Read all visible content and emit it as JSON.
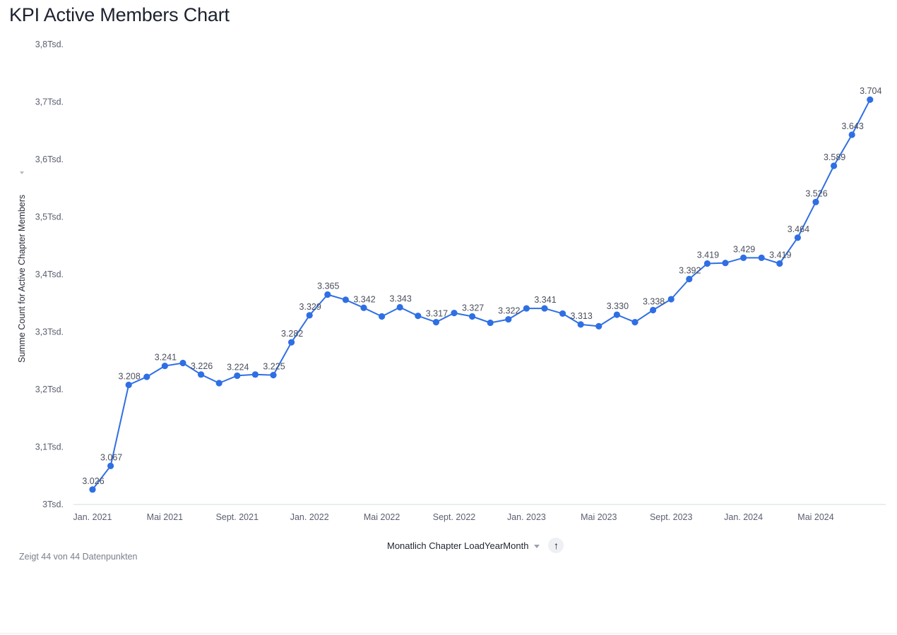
{
  "title": "KPI Active Members Chart",
  "footer_text": "Zeigt 44 von 44 Datenpunkten",
  "x_axis_control": {
    "label": "Monatlich Chapter LoadYearMonth",
    "sort_icon": "arrow-up-icon",
    "dropdown_icon": "chevron-down-icon"
  },
  "colors": {
    "series": "#2f6fe4",
    "axis": "#d5d8de"
  },
  "chart_data": {
    "type": "line",
    "title": "KPI Active Members Chart",
    "xlabel": "Monatlich Chapter LoadYearMonth",
    "ylabel": "Summe Count for Active Chapter Members",
    "ylim": [
      3000,
      3800
    ],
    "yticks": [
      {
        "value": 3000,
        "label": "3Tsd."
      },
      {
        "value": 3100,
        "label": "3,1Tsd."
      },
      {
        "value": 3200,
        "label": "3,2Tsd."
      },
      {
        "value": 3300,
        "label": "3,3Tsd."
      },
      {
        "value": 3400,
        "label": "3,4Tsd."
      },
      {
        "value": 3500,
        "label": "3,5Tsd."
      },
      {
        "value": 3600,
        "label": "3,6Tsd."
      },
      {
        "value": 3700,
        "label": "3,7Tsd."
      },
      {
        "value": 3800,
        "label": "3,8Tsd."
      }
    ],
    "xticks": [
      {
        "index": 0,
        "label": "Jan. 2021"
      },
      {
        "index": 4,
        "label": "Mai 2021"
      },
      {
        "index": 8,
        "label": "Sept. 2021"
      },
      {
        "index": 12,
        "label": "Jan. 2022"
      },
      {
        "index": 16,
        "label": "Mai 2022"
      },
      {
        "index": 20,
        "label": "Sept. 2022"
      },
      {
        "index": 24,
        "label": "Jan. 2023"
      },
      {
        "index": 28,
        "label": "Mai 2023"
      },
      {
        "index": 32,
        "label": "Sept. 2023"
      },
      {
        "index": 36,
        "label": "Jan. 2024"
      },
      {
        "index": 40,
        "label": "Mai 2024"
      }
    ],
    "grid": false,
    "series": [
      {
        "values": [
          3026,
          3067,
          3208,
          3222,
          3241,
          3246,
          3226,
          3211,
          3224,
          3226,
          3225,
          3282,
          3329,
          3365,
          3356,
          3342,
          3327,
          3343,
          3328,
          3317,
          3333,
          3327,
          3316,
          3322,
          3341,
          3341,
          3332,
          3313,
          3310,
          3330,
          3317,
          3338,
          3357,
          3392,
          3419,
          3420,
          3429,
          3429,
          3419,
          3464,
          3526,
          3589,
          3643,
          3704
        ]
      }
    ],
    "data_labels": [
      {
        "index": 0,
        "text": "3.026"
      },
      {
        "index": 1,
        "text": "3.067"
      },
      {
        "index": 2,
        "text": "3.208"
      },
      {
        "index": 4,
        "text": "3.241"
      },
      {
        "index": 6,
        "text": "3.226"
      },
      {
        "index": 8,
        "text": "3.224"
      },
      {
        "index": 10,
        "text": "3.225"
      },
      {
        "index": 11,
        "text": "3.282"
      },
      {
        "index": 12,
        "text": "3.329"
      },
      {
        "index": 13,
        "text": "3.365"
      },
      {
        "index": 15,
        "text": "3.342"
      },
      {
        "index": 17,
        "text": "3.343"
      },
      {
        "index": 19,
        "text": "3.317"
      },
      {
        "index": 21,
        "text": "3.327"
      },
      {
        "index": 23,
        "text": "3.322"
      },
      {
        "index": 25,
        "text": "3.341"
      },
      {
        "index": 27,
        "text": "3.313"
      },
      {
        "index": 29,
        "text": "3.330"
      },
      {
        "index": 31,
        "text": "3.338"
      },
      {
        "index": 33,
        "text": "3.392"
      },
      {
        "index": 34,
        "text": "3.419"
      },
      {
        "index": 36,
        "text": "3.429"
      },
      {
        "index": 38,
        "text": "3.419"
      },
      {
        "index": 39,
        "text": "3.464"
      },
      {
        "index": 40,
        "text": "3.526"
      },
      {
        "index": 41,
        "text": "3.589"
      },
      {
        "index": 42,
        "text": "3.643"
      },
      {
        "index": 43,
        "text": "3.704"
      }
    ]
  }
}
